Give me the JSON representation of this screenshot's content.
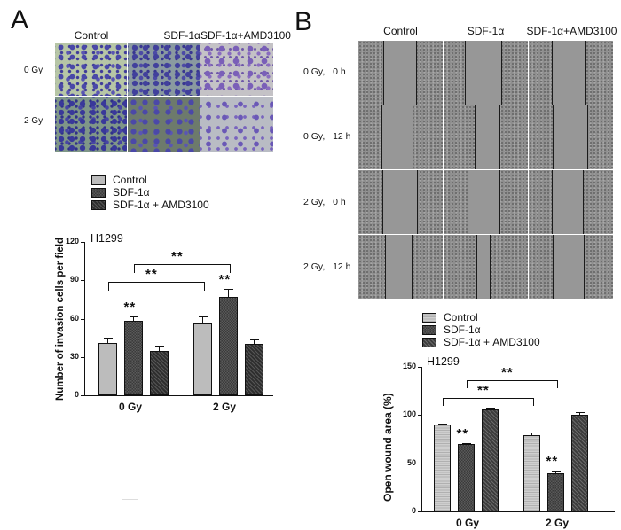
{
  "panel_a": {
    "letter": "A",
    "columns": [
      "Control",
      "SDF-1α",
      "SDF-1α+AMD3100"
    ],
    "rows": [
      "0 Gy",
      "2 Gy"
    ]
  },
  "panel_b": {
    "letter": "B",
    "columns": [
      "Control",
      "SDF-1α",
      "SDF-1α+AMD3100"
    ],
    "rows": [
      "0 Gy,   0 h",
      "0 Gy,   12 h",
      "2 Gy,   0 h",
      "2 Gy,   12 h"
    ]
  },
  "legend": {
    "items": [
      "Control",
      "SDF-1α",
      "SDF-1α + AMD3100"
    ]
  },
  "chart_data": [
    {
      "type": "bar",
      "title": "H1299",
      "xlabel": "",
      "ylabel": "Number of invasion cells per field",
      "ylim": [
        0,
        120
      ],
      "yticks": [
        0,
        30,
        60,
        90,
        120
      ],
      "categories": [
        "0 Gy",
        "2 Gy"
      ],
      "series": [
        {
          "name": "Control",
          "values": [
            41,
            56
          ],
          "errors": [
            4,
            6
          ]
        },
        {
          "name": "SDF-1α",
          "values": [
            58,
            77
          ],
          "errors": [
            4,
            6
          ]
        },
        {
          "name": "SDF-1α + AMD3100",
          "values": [
            35,
            40
          ],
          "errors": [
            4,
            4
          ]
        }
      ],
      "annotations": [
        {
          "text": "**",
          "target": "SDF-1α @ 0 Gy"
        },
        {
          "text": "**",
          "target": "SDF-1α @ 2 Gy"
        },
        {
          "text": "**",
          "bracket": "Control 0 Gy vs Control 2 Gy"
        },
        {
          "text": "**",
          "bracket": "SDF-1α 0 Gy vs SDF-1α 2 Gy"
        }
      ],
      "legend_position": "top",
      "grid": false
    },
    {
      "type": "bar",
      "title": "H1299",
      "xlabel": "",
      "ylabel": "Open wound area (%)",
      "ylim": [
        0,
        150
      ],
      "yticks": [
        0,
        50,
        100,
        150
      ],
      "categories": [
        "0 Gy",
        "2 Gy"
      ],
      "series": [
        {
          "name": "Control",
          "values": [
            90,
            79
          ],
          "errors": [
            1,
            3
          ]
        },
        {
          "name": "SDF-1α",
          "values": [
            70,
            40
          ],
          "errors": [
            1,
            2
          ]
        },
        {
          "name": "SDF-1α + AMD3100",
          "values": [
            106,
            100
          ],
          "errors": [
            2,
            3
          ]
        }
      ],
      "annotations": [
        {
          "text": "**",
          "target": "SDF-1α @ 0 Gy"
        },
        {
          "text": "**",
          "target": "SDF-1α @ 2 Gy"
        },
        {
          "text": "**",
          "bracket": "Control 0 Gy vs Control 2 Gy"
        },
        {
          "text": "**",
          "bracket": "SDF-1α 0 Gy vs SDF-1α 2 Gy"
        }
      ],
      "legend_position": "top",
      "grid": false
    }
  ],
  "sig_label": "**",
  "tick_labels_a": [
    "0",
    "30",
    "60",
    "90",
    "120"
  ],
  "tick_labels_b": [
    "0",
    "50",
    "100",
    "150"
  ]
}
